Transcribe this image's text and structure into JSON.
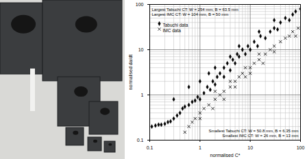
{
  "chart_data": {
    "type": "scatter",
    "xlabel": "normalised C*",
    "ylabel": "normalised da/dt",
    "log": true,
    "grid": true,
    "legend": "top-left",
    "xlim": [
      0.1,
      100
    ],
    "ylim": [
      0.1,
      100
    ],
    "xticks": [
      0.1,
      1,
      10,
      100
    ],
    "yticks": [
      0.1,
      1,
      10,
      100
    ],
    "annotations": [
      "Largest Tabuchi CT: W = 254 mm, B = 63.5 mm",
      "Largest IMC CT: W = 104 mm, B = 50 mm",
      "Smallest Tabuchi CT: W = 50.8 mm, B = 6.35 mm",
      "Smallest IMC CT: W = 26 mm, B = 13 mm"
    ],
    "series": [
      {
        "name": "Tabuchi data",
        "color": "#000000",
        "marker": "diamond",
        "x": [
          0.11,
          0.13,
          0.15,
          0.17,
          0.2,
          0.23,
          0.26,
          0.3,
          0.35,
          0.4,
          0.45,
          0.5,
          0.6,
          0.7,
          0.8,
          0.9,
          1,
          1.2,
          1.4,
          1.6,
          1.8,
          2,
          2.2,
          2.5,
          3,
          3,
          3.5,
          4,
          4.5,
          5,
          5.5,
          6,
          7,
          8,
          9,
          10,
          12,
          14,
          16,
          20,
          25,
          30,
          35,
          40,
          50,
          60,
          70,
          80,
          100,
          1.5,
          2,
          0.3,
          0.6,
          1,
          4,
          6,
          15,
          30
        ],
        "values": [
          0.2,
          0.21,
          0.22,
          0.22,
          0.23,
          0.25,
          0.26,
          0.3,
          0.35,
          0.4,
          0.5,
          0.55,
          0.6,
          0.7,
          0.75,
          0.9,
          0.8,
          1.1,
          1.5,
          1.3,
          2,
          1.7,
          2.5,
          3,
          2.5,
          4,
          5,
          3.5,
          6,
          5,
          8,
          7,
          10,
          8,
          12,
          10,
          15,
          12,
          20,
          18,
          25,
          30,
          28,
          40,
          50,
          45,
          60,
          70,
          80,
          3,
          4,
          0.8,
          1.5,
          2,
          7,
          12,
          25,
          45
        ]
      },
      {
        "name": "IMC data",
        "color": "#000000",
        "marker": "times",
        "x": [
          0.5,
          0.6,
          0.7,
          0.8,
          1,
          1,
          1.2,
          1.5,
          1.8,
          2,
          2.5,
          3,
          3,
          4,
          5,
          5,
          6,
          7,
          8,
          10,
          10,
          12,
          15,
          18,
          20,
          25,
          30,
          30,
          40,
          50,
          60,
          70,
          80,
          90,
          2,
          4,
          8,
          15
        ],
        "values": [
          0.15,
          0.2,
          0.25,
          0.3,
          0.4,
          0.3,
          0.5,
          0.6,
          0.5,
          0.8,
          1,
          1.2,
          0.8,
          1.5,
          2,
          1.5,
          2.5,
          3,
          2.5,
          4,
          3,
          5,
          6,
          5,
          8,
          10,
          9,
          12,
          15,
          18,
          20,
          25,
          20,
          30,
          1.2,
          2,
          4,
          8
        ]
      }
    ]
  }
}
